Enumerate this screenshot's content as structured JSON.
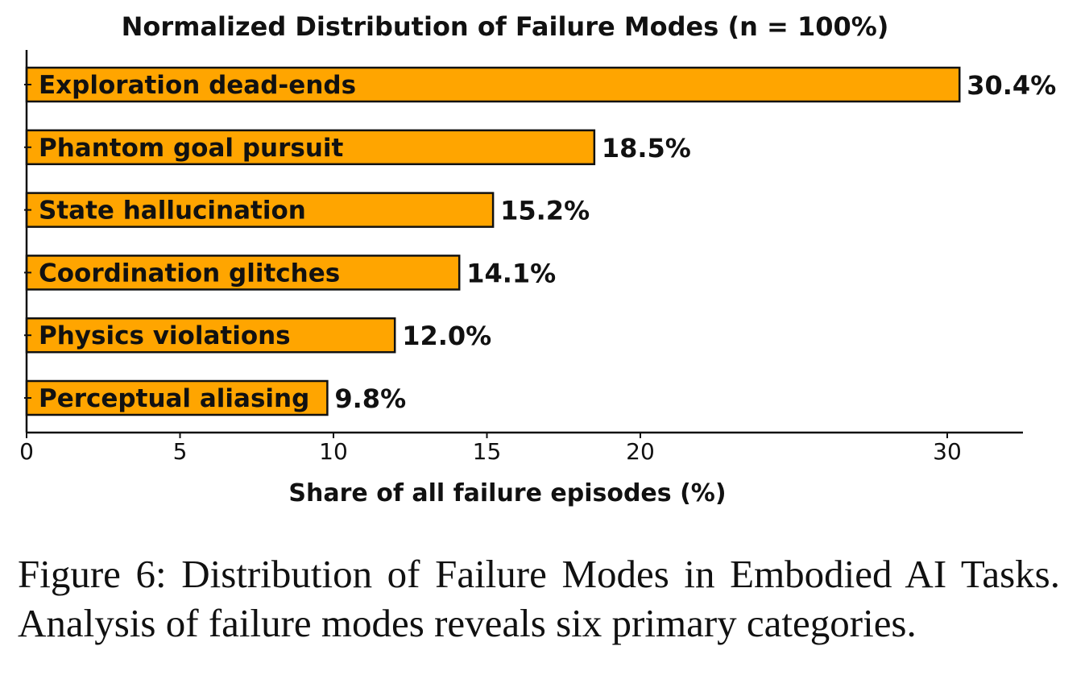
{
  "chart_data": {
    "type": "bar",
    "orientation": "horizontal",
    "title": "Normalized Distribution of Failure Modes (n = 100%)",
    "xlabel": "Share of all failure episodes (%)",
    "ylabel": "",
    "categories": [
      "Exploration dead-ends",
      "Phantom goal pursuit",
      "State hallucination",
      "Coordination glitches",
      "Physics violations",
      "Perceptual aliasing"
    ],
    "values": [
      30.4,
      18.5,
      15.2,
      14.1,
      12.0,
      9.8
    ],
    "value_labels": [
      "30.4%",
      "18.5%",
      "15.2%",
      "14.1%",
      "12.0%",
      "9.8%"
    ],
    "x_ticks": [
      {
        "value": 0,
        "label": "0"
      },
      {
        "value": 5,
        "label": "5"
      },
      {
        "value": 10,
        "label": "10"
      },
      {
        "value": 15,
        "label": "15"
      },
      {
        "value": 20,
        "label": "20"
      },
      {
        "value": 30,
        "label": "30"
      }
    ],
    "grid": false,
    "bar_color": "#FFA500",
    "edge_color": "#111111"
  },
  "caption": "Figure 6: Distribution of Failure Modes in Embodied AI Tasks. Analysis of failure modes reveals six primary categories."
}
